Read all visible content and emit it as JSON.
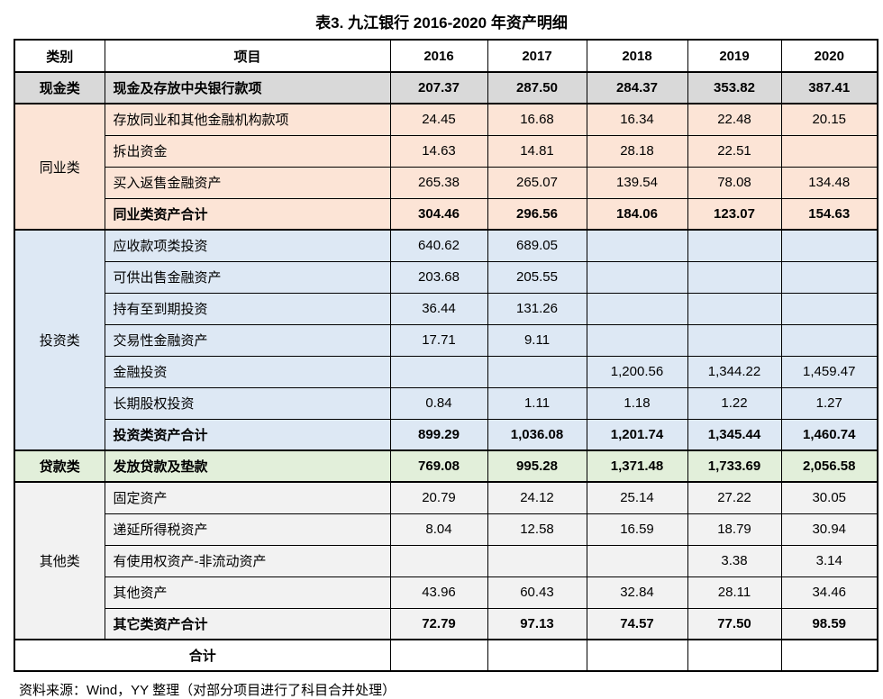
{
  "title": "表3. 九江银行 2016-2020 年资产明细",
  "source_note": "资料来源：Wind，YY 整理（对部分项目进行了科目合并处理）",
  "colors": {
    "cash_bg": "#d9d9d9",
    "interbank_bg": "#fce4d6",
    "investment_bg": "#dde8f4",
    "loan_bg": "#e2efda",
    "other_bg": "#f2f2f2",
    "border": "#000000"
  },
  "table": {
    "headers": [
      "类别",
      "项目",
      "2016",
      "2017",
      "2018",
      "2019",
      "2020"
    ],
    "sections": [
      {
        "category": "现金类",
        "bold_category": true,
        "color": "#d9d9d9",
        "rows": [
          {
            "item": "现金及存放中央银行款项",
            "bold": true,
            "values": [
              "207.37",
              "287.50",
              "284.37",
              "353.82",
              "387.41"
            ]
          }
        ]
      },
      {
        "category": "同业类",
        "bold_category": false,
        "color": "#fce4d6",
        "rows": [
          {
            "item": "存放同业和其他金融机构款项",
            "bold": false,
            "values": [
              "24.45",
              "16.68",
              "16.34",
              "22.48",
              "20.15"
            ]
          },
          {
            "item": "拆出资金",
            "bold": false,
            "values": [
              "14.63",
              "14.81",
              "28.18",
              "22.51",
              ""
            ]
          },
          {
            "item": "买入返售金融资产",
            "bold": false,
            "values": [
              "265.38",
              "265.07",
              "139.54",
              "78.08",
              "134.48"
            ]
          },
          {
            "item": "同业类资产合计",
            "bold": true,
            "values": [
              "304.46",
              "296.56",
              "184.06",
              "123.07",
              "154.63"
            ]
          }
        ]
      },
      {
        "category": "投资类",
        "bold_category": false,
        "color": "#dde8f4",
        "rows": [
          {
            "item": "应收款项类投资",
            "bold": false,
            "values": [
              "640.62",
              "689.05",
              "",
              "",
              ""
            ]
          },
          {
            "item": "可供出售金融资产",
            "bold": false,
            "values": [
              "203.68",
              "205.55",
              "",
              "",
              ""
            ]
          },
          {
            "item": "持有至到期投资",
            "bold": false,
            "values": [
              "36.44",
              "131.26",
              "",
              "",
              ""
            ]
          },
          {
            "item": "交易性金融资产",
            "bold": false,
            "values": [
              "17.71",
              "9.11",
              "",
              "",
              ""
            ]
          },
          {
            "item": "金融投资",
            "bold": false,
            "values": [
              "",
              "",
              "1,200.56",
              "1,344.22",
              "1,459.47"
            ]
          },
          {
            "item": "长期股权投资",
            "bold": false,
            "values": [
              "0.84",
              "1.11",
              "1.18",
              "1.22",
              "1.27"
            ]
          },
          {
            "item": "投资类资产合计",
            "bold": true,
            "values": [
              "899.29",
              "1,036.08",
              "1,201.74",
              "1,345.44",
              "1,460.74"
            ]
          }
        ]
      },
      {
        "category": "贷款类",
        "bold_category": true,
        "color": "#e2efda",
        "rows": [
          {
            "item": "发放贷款及垫款",
            "bold": true,
            "values": [
              "769.08",
              "995.28",
              "1,371.48",
              "1,733.69",
              "2,056.58"
            ]
          }
        ]
      },
      {
        "category": "其他类",
        "bold_category": false,
        "color": "#f2f2f2",
        "rows": [
          {
            "item": "固定资产",
            "bold": false,
            "values": [
              "20.79",
              "24.12",
              "25.14",
              "27.22",
              "30.05"
            ]
          },
          {
            "item": "递延所得税资产",
            "bold": false,
            "values": [
              "8.04",
              "12.58",
              "16.59",
              "18.79",
              "30.94"
            ]
          },
          {
            "item": "有使用权资产-非流动资产",
            "bold": false,
            "values": [
              "",
              "",
              "",
              "3.38",
              "3.14"
            ]
          },
          {
            "item": "其他资产",
            "bold": false,
            "values": [
              "43.96",
              "60.43",
              "32.84",
              "28.11",
              "34.46"
            ]
          },
          {
            "item": "其它类资产合计",
            "bold": true,
            "values": [
              "72.79",
              "97.13",
              "74.57",
              "77.50",
              "98.59"
            ]
          }
        ]
      }
    ],
    "total_row": {
      "label": "合计",
      "values": [
        "",
        "",
        "",
        "",
        ""
      ]
    }
  }
}
